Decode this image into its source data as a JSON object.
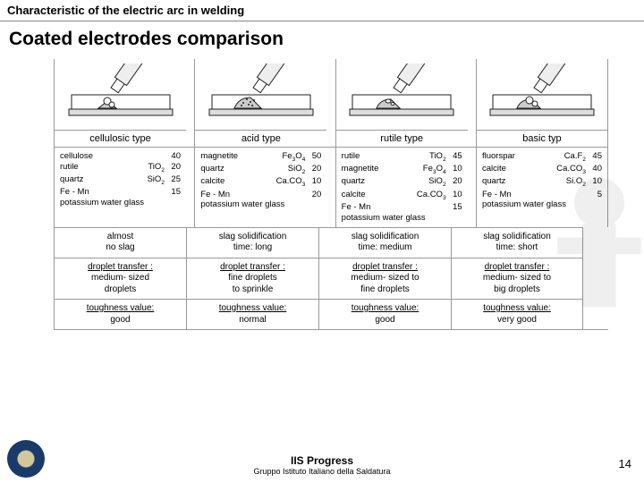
{
  "header": "Characteristic of the electric arc in welding",
  "title": "Coated electrodes comparison",
  "types": [
    "cellulosic type",
    "acid type",
    "rutile type",
    "basic typ"
  ],
  "comp": [
    [
      {
        "n": "cellulose",
        "f": "",
        "v": "40"
      },
      {
        "n": "rutile",
        "f": "TiO₂",
        "v": "20"
      },
      {
        "n": "quartz",
        "f": "SiO₂",
        "v": "25"
      },
      {
        "n": "Fe - Mn",
        "f": "",
        "v": "15"
      },
      {
        "n": "potassium water glass",
        "f": "",
        "v": ""
      }
    ],
    [
      {
        "n": "magnetite",
        "f": "Fe₃O₄",
        "v": "50"
      },
      {
        "n": "quartz",
        "f": "SiO₂",
        "v": "20"
      },
      {
        "n": "calcite",
        "f": "Ca.CO₃",
        "v": "10"
      },
      {
        "n": "Fe - Mn",
        "f": "",
        "v": "20"
      },
      {
        "n": "potassium water glass",
        "f": "",
        "v": ""
      }
    ],
    [
      {
        "n": "rutile",
        "f": "TiO₂",
        "v": "45"
      },
      {
        "n": "magnetite",
        "f": "Fe₃O₄",
        "v": "10"
      },
      {
        "n": "quartz",
        "f": "SiO₂",
        "v": "20"
      },
      {
        "n": "calcite",
        "f": "Ca.CO₃",
        "v": "10"
      },
      {
        "n": "Fe - Mn",
        "f": "",
        "v": "15"
      },
      {
        "n": "potassium water glass",
        "f": "",
        "v": ""
      }
    ],
    [
      {
        "n": "fluorspar",
        "f": "Ca.F₂",
        "v": "45"
      },
      {
        "n": "calcite",
        "f": "Ca.CO₃",
        "v": "40"
      },
      {
        "n": "quartz",
        "f": "Si.O₂",
        "v": "10"
      },
      {
        "n": "Fe - Mn",
        "f": "",
        "v": "5"
      },
      {
        "n": "potassium water glass",
        "f": "",
        "v": ""
      }
    ]
  ],
  "slag": [
    "almost\nno slag",
    "slag solidification\ntime: long",
    "slag solidification\ntime: medium",
    "slag solidification\ntime: short"
  ],
  "transfer_head": "droplet transfer :",
  "transfer": [
    "medium- sized\ndroplets",
    "fine droplets\nto sprinkle",
    "medium- sized to\nfine droplets",
    "medium- sized to\nbig droplets"
  ],
  "tough_head": "toughness value:",
  "tough": [
    "good",
    "normal",
    "good",
    "very good"
  ],
  "footer": {
    "org": "IIS Progress",
    "sub": "Gruppo Istituto Italiano della Saldatura"
  },
  "page": "14"
}
